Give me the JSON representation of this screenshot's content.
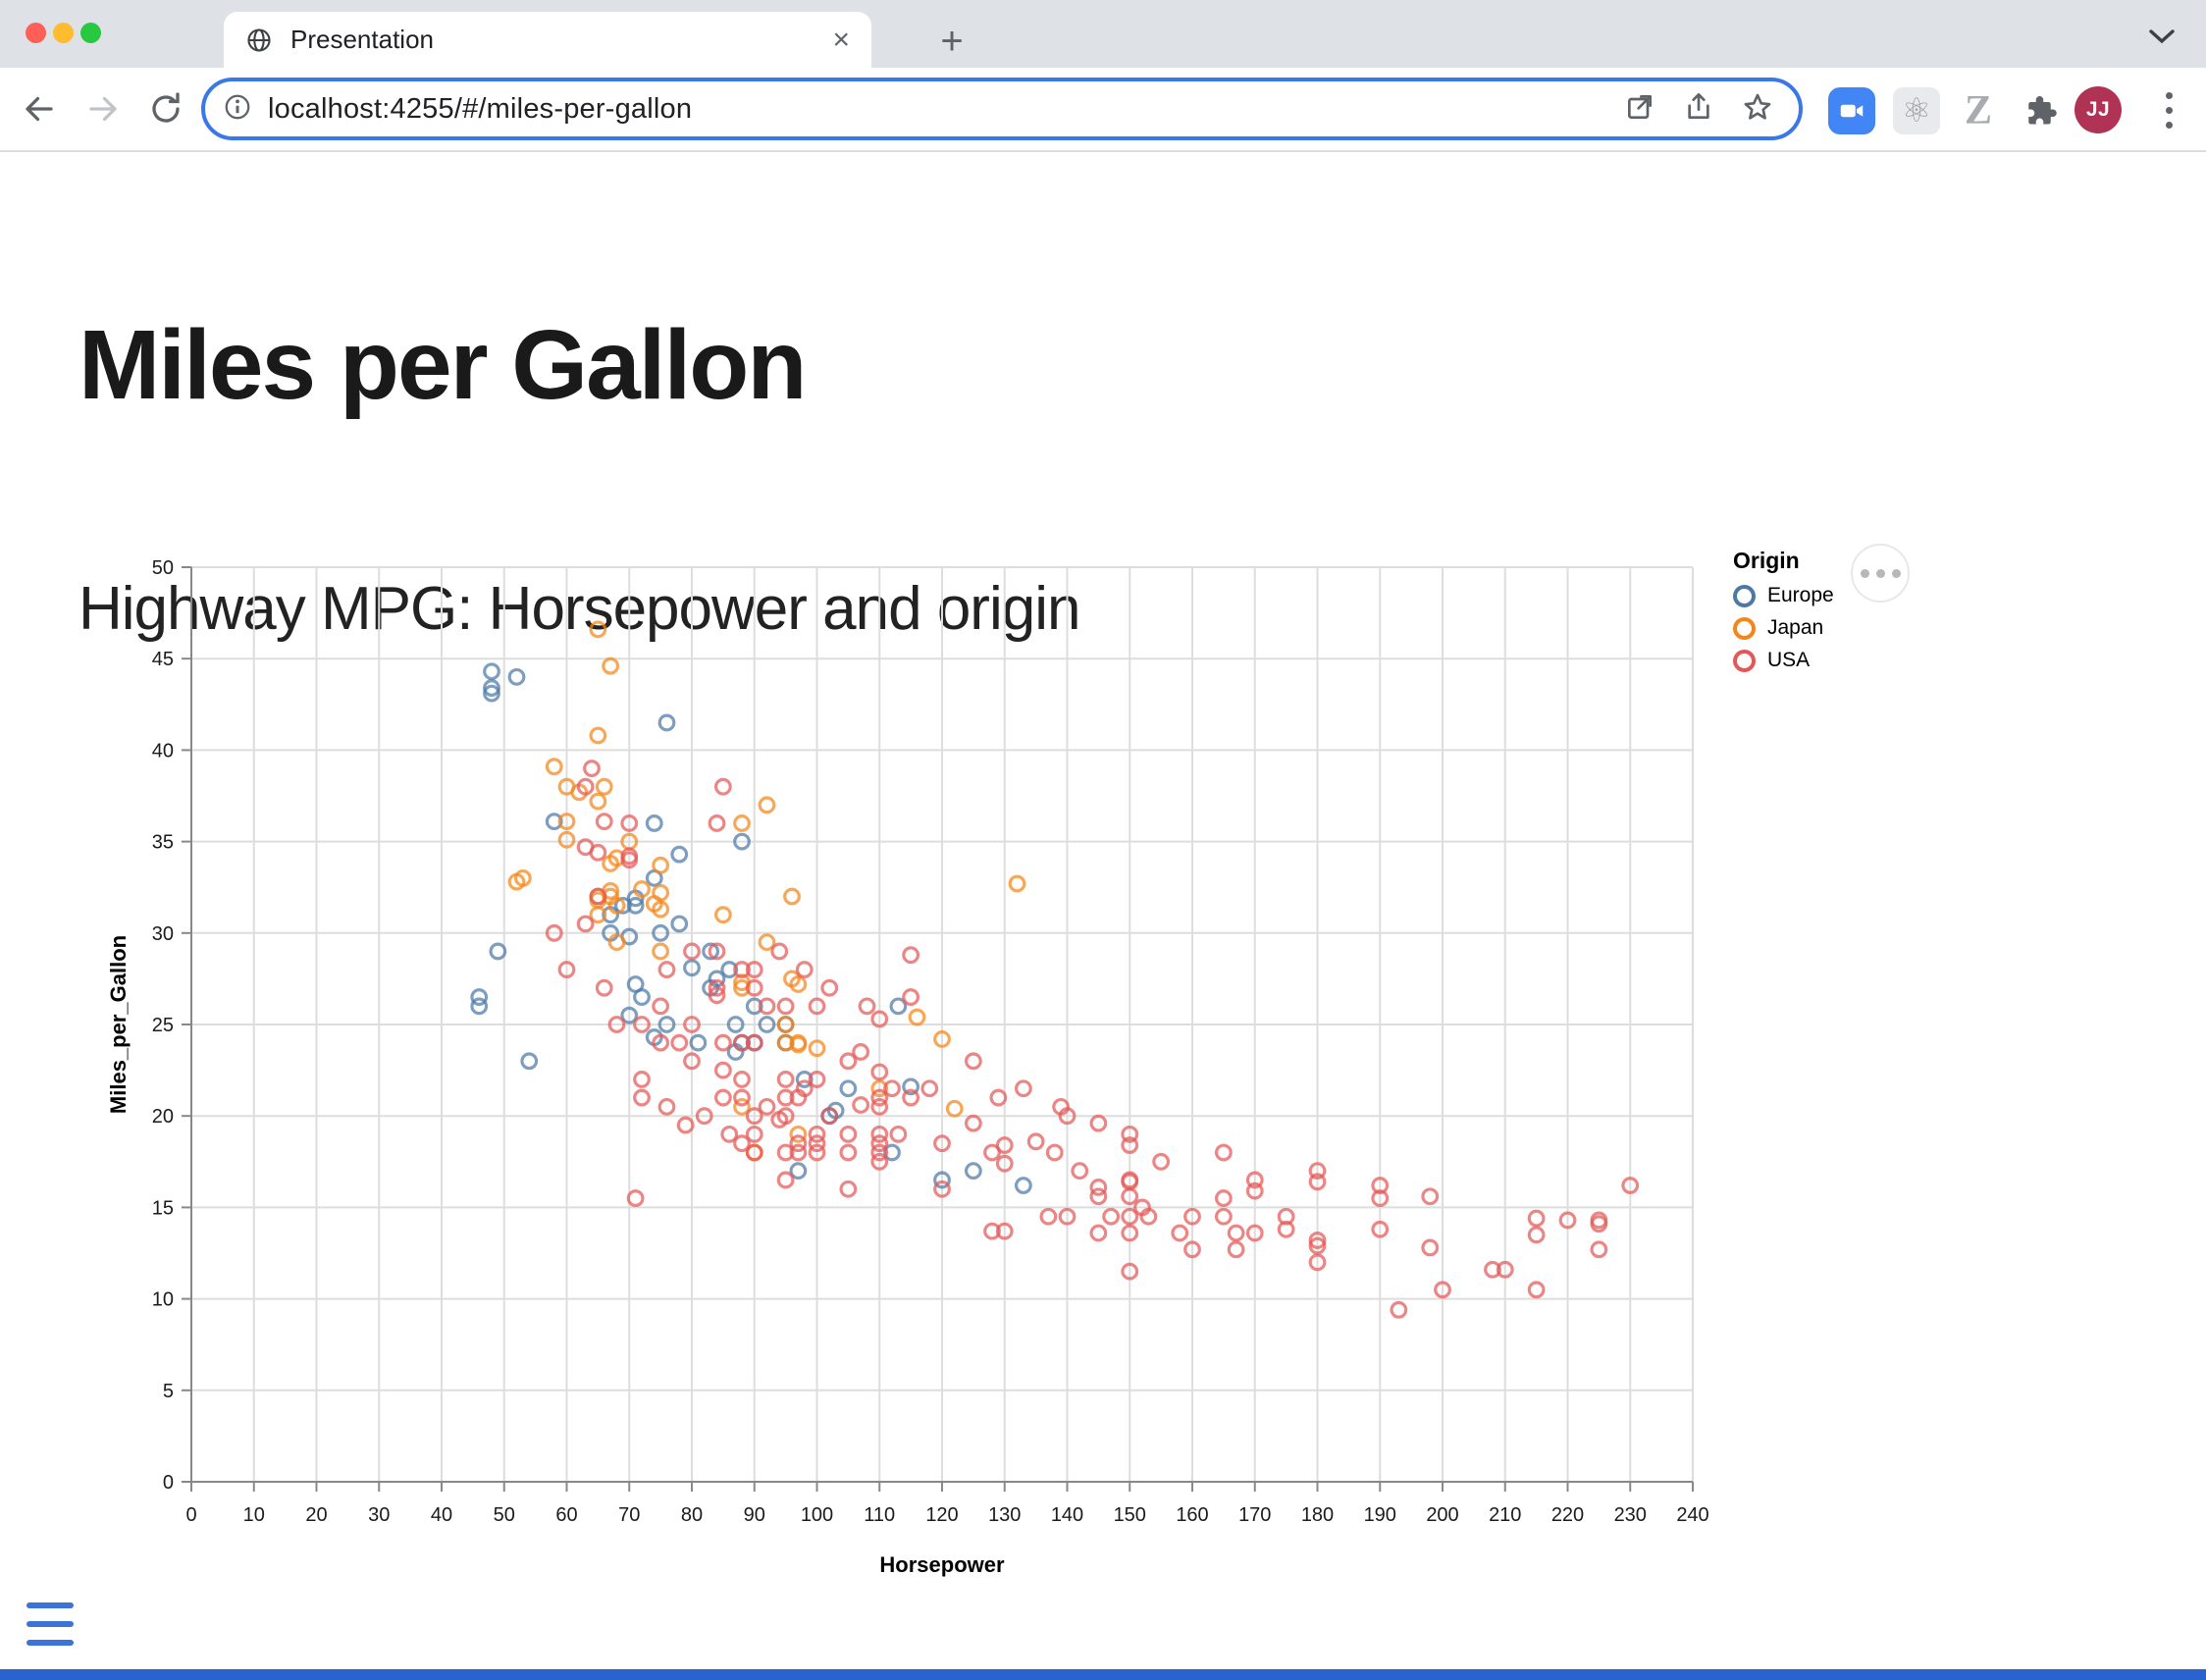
{
  "browser": {
    "tab": {
      "title": "Presentation"
    },
    "new_tab_label": "+",
    "url": "localhost:4255/#/miles-per-gallon",
    "avatar_initials": "JJ"
  },
  "page": {
    "title": "Miles per Gallon",
    "subtitle": "Highway MPG: Horsepower and origin"
  },
  "chart_data": {
    "type": "scatter",
    "xlabel": "Horsepower",
    "ylabel": "Miles_per_Gallon",
    "xlim": [
      0,
      240
    ],
    "x_tick_step": 10,
    "ylim": [
      0,
      50
    ],
    "y_tick_step": 5,
    "grid": true,
    "mark": {
      "shape": "circle-open",
      "opacity": 0.72,
      "radius": 7.3,
      "stroke_width": 3.2
    },
    "legend": {
      "title": "Origin",
      "position": "top-right"
    },
    "series": [
      {
        "name": "Europe",
        "color": "#4c78a8",
        "points": [
          [
            48,
            44.3
          ],
          [
            48,
            43.4
          ],
          [
            48,
            43.1
          ],
          [
            52,
            44
          ],
          [
            76,
            41.5
          ],
          [
            58,
            36.1
          ],
          [
            88,
            35
          ],
          [
            74,
            36
          ],
          [
            74,
            33
          ],
          [
            78,
            34.3
          ],
          [
            71,
            31.9
          ],
          [
            71,
            31.5
          ],
          [
            70,
            29.8
          ],
          [
            67,
            31
          ],
          [
            67,
            30
          ],
          [
            75,
            30
          ],
          [
            80,
            28.1
          ],
          [
            83,
            29
          ],
          [
            83,
            27
          ],
          [
            90,
            26
          ],
          [
            87,
            25
          ],
          [
            90,
            24
          ],
          [
            95,
            25
          ],
          [
            95,
            24
          ],
          [
            46,
            26
          ],
          [
            46,
            26.5
          ],
          [
            49,
            29
          ],
          [
            54,
            23
          ],
          [
            71,
            27.2
          ],
          [
            78,
            30.5
          ],
          [
            112,
            18
          ],
          [
            113,
            26
          ],
          [
            105,
            21.5
          ],
          [
            103,
            20.3
          ],
          [
            125,
            17
          ],
          [
            120,
            16.5
          ],
          [
            133,
            16.2
          ],
          [
            98,
            22
          ],
          [
            115,
            21.6
          ],
          [
            97,
            17
          ],
          [
            81,
            24
          ],
          [
            92,
            25
          ],
          [
            86,
            28
          ],
          [
            74,
            24.3
          ],
          [
            70,
            25.5
          ],
          [
            87,
            23.5
          ],
          [
            69,
            31.5
          ],
          [
            76,
            25
          ],
          [
            102,
            20
          ],
          [
            88,
            24
          ],
          [
            84,
            27.5
          ],
          [
            72,
            26.5
          ]
        ]
      },
      {
        "name": "Japan",
        "color": "#f58518",
        "points": [
          [
            65,
            46.6
          ],
          [
            67,
            44.6
          ],
          [
            65,
            40.8
          ],
          [
            60,
            38
          ],
          [
            58,
            39.1
          ],
          [
            62,
            37.7
          ],
          [
            65,
            37.2
          ],
          [
            60,
            36.1
          ],
          [
            60,
            35.1
          ],
          [
            67,
            33.8
          ],
          [
            67,
            32.3
          ],
          [
            68,
            34.1
          ],
          [
            75,
            33.7
          ],
          [
            68,
            31.5
          ],
          [
            68,
            29.5
          ],
          [
            72,
            32.4
          ],
          [
            75,
            32.2
          ],
          [
            75,
            29
          ],
          [
            75,
            31.3
          ],
          [
            74,
            31.6
          ],
          [
            92,
            37
          ],
          [
            88,
            36
          ],
          [
            65,
            31
          ],
          [
            65,
            32
          ],
          [
            67,
            32
          ],
          [
            53,
            33
          ],
          [
            52,
            32.8
          ],
          [
            97,
            27.2
          ],
          [
            96,
            32
          ],
          [
            95,
            24
          ],
          [
            95,
            25
          ],
          [
            96,
            27.5
          ],
          [
            88,
            27
          ],
          [
            88,
            27.3
          ],
          [
            97,
            19
          ],
          [
            90,
            18
          ],
          [
            110,
            21.5
          ],
          [
            100,
            23.7
          ],
          [
            132,
            32.7
          ],
          [
            116,
            25.4
          ],
          [
            120,
            24.2
          ],
          [
            97,
            24
          ],
          [
            97,
            23.9
          ],
          [
            66,
            38
          ],
          [
            65,
            31.8
          ],
          [
            88,
            20.5
          ],
          [
            122,
            20.4
          ],
          [
            92,
            29.5
          ],
          [
            85,
            31
          ],
          [
            70,
            35
          ]
        ]
      },
      {
        "name": "USA",
        "color": "#e45756",
        "points": [
          [
            64,
            39
          ],
          [
            63,
            38
          ],
          [
            66,
            36.1
          ],
          [
            63,
            34.7
          ],
          [
            70,
            34.2
          ],
          [
            65,
            32
          ],
          [
            85,
            38
          ],
          [
            84,
            36
          ],
          [
            70,
            36
          ],
          [
            65,
            34.4
          ],
          [
            70,
            34
          ],
          [
            63,
            30.5
          ],
          [
            84,
            29
          ],
          [
            88,
            28
          ],
          [
            84,
            27
          ],
          [
            90,
            27
          ],
          [
            92,
            26
          ],
          [
            84,
            26.6
          ],
          [
            88,
            24
          ],
          [
            88,
            22
          ],
          [
            90,
            28
          ],
          [
            90,
            24
          ],
          [
            95,
            22
          ],
          [
            97,
            18
          ],
          [
            85,
            21
          ],
          [
            100,
            19
          ],
          [
            100,
            18
          ],
          [
            100,
            18.5
          ],
          [
            102,
            20
          ],
          [
            110,
            25.3
          ],
          [
            110,
            22.4
          ],
          [
            110,
            21
          ],
          [
            110,
            20.5
          ],
          [
            110,
            19
          ],
          [
            110,
            18.5
          ],
          [
            110,
            18
          ],
          [
            110,
            17.5
          ],
          [
            105,
            23
          ],
          [
            105,
            19
          ],
          [
            105,
            18
          ],
          [
            105,
            16
          ],
          [
            95,
            21
          ],
          [
            95,
            20
          ],
          [
            95,
            18
          ],
          [
            95,
            16.5
          ],
          [
            97,
            21
          ],
          [
            97,
            18.5
          ],
          [
            100,
            22
          ],
          [
            90,
            20
          ],
          [
            90,
            19
          ],
          [
            90,
            18
          ],
          [
            88,
            21
          ],
          [
            88,
            18.5
          ],
          [
            85,
            24
          ],
          [
            85,
            22.5
          ],
          [
            80,
            25
          ],
          [
            80,
            23
          ],
          [
            78,
            24
          ],
          [
            75,
            26
          ],
          [
            75,
            24
          ],
          [
            72,
            25
          ],
          [
            72,
            22
          ],
          [
            72,
            21
          ],
          [
            68,
            25
          ],
          [
            66,
            27
          ],
          [
            60,
            28
          ],
          [
            58,
            30
          ],
          [
            71,
            15.5
          ],
          [
            76,
            20.5
          ],
          [
            79,
            19.5
          ],
          [
            82,
            20
          ],
          [
            86,
            19
          ],
          [
            92,
            20.5
          ],
          [
            94,
            19.8
          ],
          [
            98,
            21.5
          ],
          [
            107,
            20.6
          ],
          [
            113,
            19
          ],
          [
            118,
            21.5
          ],
          [
            129,
            21
          ],
          [
            133,
            21.5
          ],
          [
            138,
            18
          ],
          [
            142,
            17
          ],
          [
            108,
            26
          ],
          [
            102,
            27
          ],
          [
            98,
            28
          ],
          [
            94,
            29
          ],
          [
            80,
            29
          ],
          [
            76,
            28
          ],
          [
            95,
            26
          ],
          [
            100,
            26
          ],
          [
            107,
            23.5
          ],
          [
            115,
            28.8
          ],
          [
            115,
            26.5
          ],
          [
            112,
            21.5
          ],
          [
            115,
            21
          ],
          [
            125,
            23
          ],
          [
            139,
            20.5
          ],
          [
            140,
            20
          ],
          [
            120,
            18.5
          ],
          [
            120,
            16
          ],
          [
            125,
            19.6
          ],
          [
            128,
            18
          ],
          [
            130,
            18.4
          ],
          [
            130,
            17.4
          ],
          [
            128,
            13.7
          ],
          [
            130,
            13.7
          ],
          [
            135,
            18.6
          ],
          [
            137,
            14.5
          ],
          [
            140,
            14.5
          ],
          [
            145,
            19.6
          ],
          [
            145,
            16.1
          ],
          [
            145,
            15.6
          ],
          [
            145,
            13.6
          ],
          [
            147,
            14.5
          ],
          [
            150,
            19
          ],
          [
            150,
            18.4
          ],
          [
            150,
            16.5
          ],
          [
            150,
            16.4
          ],
          [
            150,
            15.6
          ],
          [
            150,
            14.5
          ],
          [
            150,
            13.6
          ],
          [
            150,
            11.5
          ],
          [
            152,
            15
          ],
          [
            153,
            14.5
          ],
          [
            155,
            17.5
          ],
          [
            158,
            13.6
          ],
          [
            160,
            14.5
          ],
          [
            160,
            12.7
          ],
          [
            165,
            18
          ],
          [
            165,
            15.5
          ],
          [
            165,
            14.5
          ],
          [
            167,
            13.6
          ],
          [
            167,
            12.7
          ],
          [
            170,
            16.5
          ],
          [
            170,
            15.9
          ],
          [
            170,
            13.6
          ],
          [
            175,
            14.5
          ],
          [
            175,
            13.8
          ],
          [
            180,
            17
          ],
          [
            180,
            16.4
          ],
          [
            180,
            13.2
          ],
          [
            180,
            12.9
          ],
          [
            180,
            12
          ],
          [
            190,
            16.2
          ],
          [
            190,
            15.5
          ],
          [
            190,
            13.8
          ],
          [
            193,
            9.4
          ],
          [
            198,
            15.6
          ],
          [
            198,
            12.8
          ],
          [
            200,
            10.5
          ],
          [
            208,
            11.6
          ],
          [
            210,
            11.6
          ],
          [
            215,
            14.4
          ],
          [
            215,
            13.5
          ],
          [
            215,
            10.5
          ],
          [
            220,
            14.3
          ],
          [
            225,
            14.3
          ],
          [
            225,
            14.1
          ],
          [
            225,
            12.7
          ],
          [
            230,
            16.2
          ]
        ]
      }
    ]
  }
}
